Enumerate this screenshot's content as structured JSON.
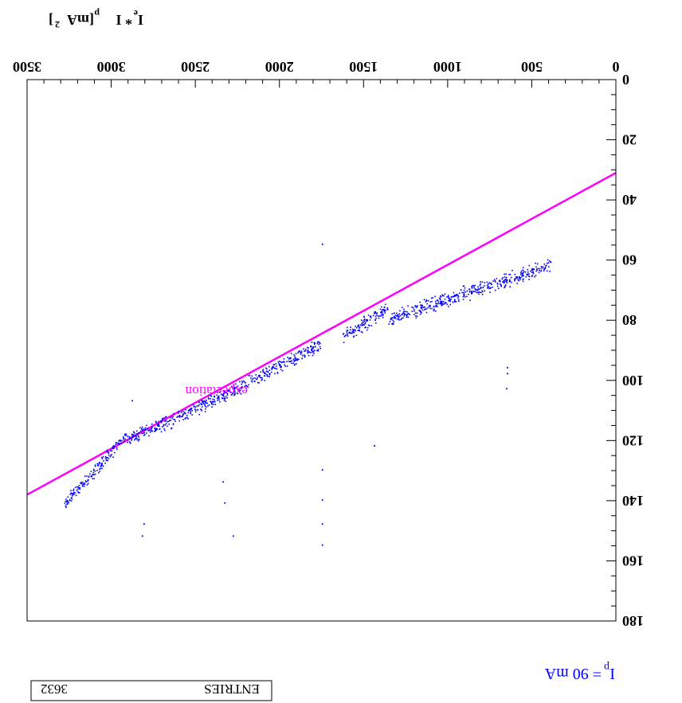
{
  "chart_data": {
    "type": "scatter",
    "orientation": "rotated-180",
    "xlabel_main": "I",
    "xlabel_sub1": "e",
    "xlabel_mid": " * I",
    "xlabel_sub2": "p",
    "xlabel_unit": " [mA",
    "xlabel_sup": "2",
    "xlabel_end": "]",
    "xlim": [
      0,
      3500
    ],
    "ylim": [
      0,
      180
    ],
    "xticks": [
      "0",
      "500",
      "1000",
      "1500",
      "2000",
      "2500",
      "3000",
      "3500"
    ],
    "yticks": [
      "0",
      "20",
      "40",
      "60",
      "80",
      "100",
      "120",
      "140",
      "160",
      "180"
    ],
    "expectation": {
      "label": "expectation",
      "color": "#ff00ff",
      "x": [
        0,
        3500
      ],
      "y": [
        31,
        138
      ]
    },
    "scatter_color": "#0000ff",
    "segments": [
      {
        "x0": 380,
        "x1": 1350,
        "y0": 62,
        "y1": 80
      },
      {
        "x0": 1350,
        "x1": 1620,
        "y0": 76,
        "y1": 86
      },
      {
        "x0": 1750,
        "x1": 2350,
        "y0": 88,
        "y1": 106
      },
      {
        "x0": 2350,
        "x1": 2900,
        "y0": 106,
        "y1": 120
      },
      {
        "x0": 2900,
        "x1": 3280,
        "y0": 118,
        "y1": 142
      }
    ],
    "outliers": [
      {
        "x": 640,
        "y": 96
      },
      {
        "x": 640,
        "y": 98
      },
      {
        "x": 645,
        "y": 103
      },
      {
        "x": 1430,
        "y": 122
      },
      {
        "x": 1740,
        "y": 55
      },
      {
        "x": 1740,
        "y": 140
      },
      {
        "x": 1740,
        "y": 148
      },
      {
        "x": 1740,
        "y": 155
      },
      {
        "x": 1740,
        "y": 130
      },
      {
        "x": 2270,
        "y": 152
      },
      {
        "x": 2320,
        "y": 141
      },
      {
        "x": 2330,
        "y": 134
      },
      {
        "x": 2800,
        "y": 148
      },
      {
        "x": 2810,
        "y": 152
      },
      {
        "x": 2870,
        "y": 107
      }
    ],
    "stats_label": "ENTRIES",
    "stats_value": "3632",
    "annotation_main": "I",
    "annotation_sub": "p",
    "annotation_rest": " = 90 mA"
  }
}
